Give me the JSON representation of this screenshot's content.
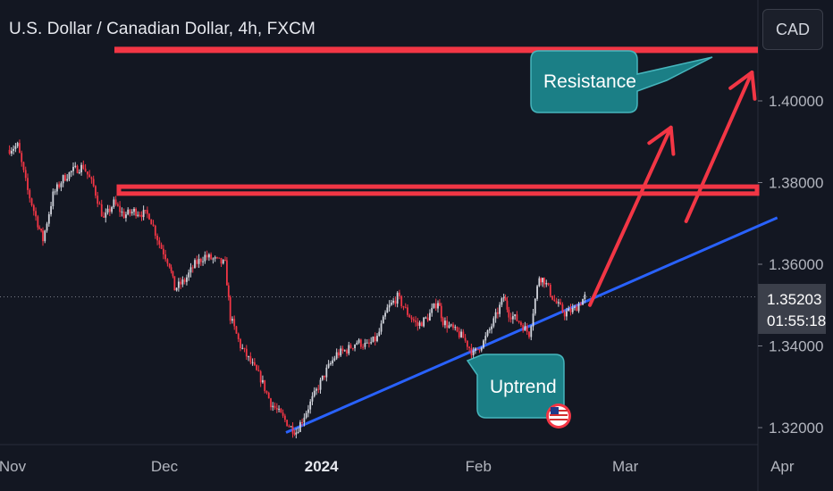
{
  "header": {
    "title": "U.S. Dollar / Canadian Dollar, 4h, FXCM"
  },
  "currency_button": {
    "label": "CAD"
  },
  "price_label": {
    "price": "1.35203",
    "countdown": "01:55:18"
  },
  "annotations": {
    "resistance": "Resistance",
    "uptrend": "Uptrend"
  },
  "colors": {
    "background": "#131722",
    "up": "#d1d4dc",
    "down": "#f23645",
    "resistance_line": "#f23645",
    "trend_line": "#2962ff",
    "arrow": "#f23645",
    "callout": "#1b7f86"
  },
  "icons": {
    "flag": "us-flag-icon"
  },
  "chart_data": {
    "type": "candlestick",
    "title": "U.S. Dollar / Canadian Dollar, 4h, FXCM",
    "y_axis": {
      "ticks": [
        "1.40000",
        "1.38000",
        "1.36000",
        "1.34000",
        "1.32000"
      ],
      "range": [
        1.3181,
        1.4264
      ]
    },
    "x_axis": {
      "ticks": [
        "Nov",
        "Dec",
        "2024",
        "Feb",
        "Mar",
        "Apr"
      ],
      "bold": [
        "2024"
      ]
    },
    "last_price": 1.35203,
    "resistance_levels": [
      1.4125,
      1.379,
      1.3773
    ],
    "trend_line": {
      "from": {
        "x": "Dec 25",
        "y": 1.3188
      },
      "to": {
        "x": "Mar 31",
        "y": 1.3714
      }
    },
    "series": [
      {
        "x": "Oct 31",
        "y": 1.388
      },
      {
        "x": "Nov 2",
        "y": 1.389
      },
      {
        "x": "Nov 4",
        "y": 1.378
      },
      {
        "x": "Nov 6",
        "y": 1.37
      },
      {
        "x": "Nov 7",
        "y": 1.366
      },
      {
        "x": "Nov 9",
        "y": 1.377
      },
      {
        "x": "Nov 11",
        "y": 1.381
      },
      {
        "x": "Nov 13",
        "y": 1.383
      },
      {
        "x": "Nov 15",
        "y": 1.384
      },
      {
        "x": "Nov 17",
        "y": 1.379
      },
      {
        "x": "Nov 19",
        "y": 1.371
      },
      {
        "x": "Nov 21",
        "y": 1.375
      },
      {
        "x": "Nov 23",
        "y": 1.372
      },
      {
        "x": "Nov 25",
        "y": 1.373
      },
      {
        "x": "Nov 28",
        "y": 1.372
      },
      {
        "x": "Nov 30",
        "y": 1.365
      },
      {
        "x": "Dec 2",
        "y": 1.36
      },
      {
        "x": "Dec 3",
        "y": 1.354
      },
      {
        "x": "Dec 5",
        "y": 1.356
      },
      {
        "x": "Dec 7",
        "y": 1.36
      },
      {
        "x": "Dec 9",
        "y": 1.362
      },
      {
        "x": "Dec 11",
        "y": 1.361
      },
      {
        "x": "Dec 13",
        "y": 1.36
      },
      {
        "x": "Dec 14",
        "y": 1.347
      },
      {
        "x": "Dec 16",
        "y": 1.34
      },
      {
        "x": "Dec 18",
        "y": 1.336
      },
      {
        "x": "Dec 20",
        "y": 1.332
      },
      {
        "x": "Dec 22",
        "y": 1.326
      },
      {
        "x": "Dec 24",
        "y": 1.323
      },
      {
        "x": "Dec 26",
        "y": 1.32
      },
      {
        "x": "Dec 27",
        "y": 1.319
      },
      {
        "x": "Dec 29",
        "y": 1.324
      },
      {
        "x": "Dec 31",
        "y": 1.329
      },
      {
        "x": "Jan 2",
        "y": 1.334
      },
      {
        "x": "Jan 4",
        "y": 1.338
      },
      {
        "x": "Jan 6",
        "y": 1.339
      },
      {
        "x": "Jan 8",
        "y": 1.341
      },
      {
        "x": "Jan 10",
        "y": 1.34
      },
      {
        "x": "Jan 12",
        "y": 1.342
      },
      {
        "x": "Jan 14",
        "y": 1.349
      },
      {
        "x": "Jan 16",
        "y": 1.352
      },
      {
        "x": "Jan 18",
        "y": 1.348
      },
      {
        "x": "Jan 20",
        "y": 1.345
      },
      {
        "x": "Jan 22",
        "y": 1.347
      },
      {
        "x": "Jan 24",
        "y": 1.351
      },
      {
        "x": "Jan 25",
        "y": 1.346
      },
      {
        "x": "Jan 27",
        "y": 1.344
      },
      {
        "x": "Jan 29",
        "y": 1.342
      },
      {
        "x": "Jan 31",
        "y": 1.338
      },
      {
        "x": "Feb 2",
        "y": 1.341
      },
      {
        "x": "Feb 4",
        "y": 1.346
      },
      {
        "x": "Feb 6",
        "y": 1.352
      },
      {
        "x": "Feb 7",
        "y": 1.348
      },
      {
        "x": "Feb 9",
        "y": 1.346
      },
      {
        "x": "Feb 11",
        "y": 1.343
      },
      {
        "x": "Feb 13",
        "y": 1.357
      },
      {
        "x": "Feb 14",
        "y": 1.356
      },
      {
        "x": "Feb 16",
        "y": 1.351
      },
      {
        "x": "Feb 18",
        "y": 1.348
      },
      {
        "x": "Feb 20",
        "y": 1.349
      },
      {
        "x": "Feb 22",
        "y": 1.352
      }
    ],
    "projection_arrows": [
      {
        "from": {
          "x": "Feb 23",
          "y": 1.35
        },
        "to": {
          "x": "Mar 10",
          "y": 1.3935
        }
      },
      {
        "from": {
          "x": "Mar 13",
          "y": 1.3705
        },
        "to": {
          "x": "Mar 26",
          "y": 1.407
        }
      }
    ]
  }
}
